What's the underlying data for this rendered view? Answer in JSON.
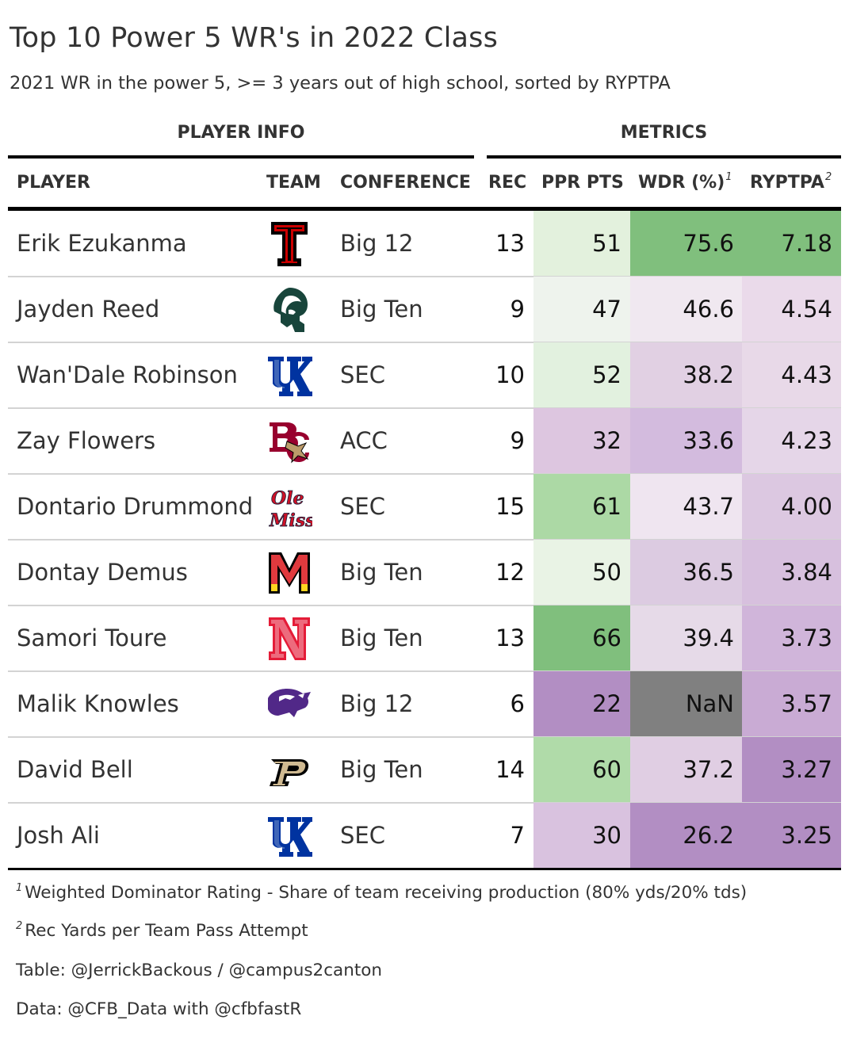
{
  "header": {
    "title": "Top 10 Power 5 WR's in 2022 Class",
    "subtitle": "2021 WR in the power 5, >= 3 years out of high school, sorted by RYPTPA"
  },
  "spanners": {
    "player_info": "PLAYER INFO",
    "metrics": "METRICS"
  },
  "columns": {
    "player": "PLAYER",
    "team": "TEAM",
    "conference": "CONFERENCE",
    "rec": "REC",
    "ppr": "PPR PTS",
    "wdr": "WDR (%)",
    "wdr_note": "1",
    "ryptpa": "RYPTPA",
    "ryptpa_note": "2"
  },
  "chart_data": {
    "type": "table",
    "title": "Top 10 Power 5 WR's in 2022 Class",
    "subtitle": "2021 WR in the power 5, >= 3 years out of high school, sorted by RYPTPA",
    "sort": "RYPTPA",
    "rows": [
      {
        "player": "Erik Ezukanma",
        "team": "texas-tech-logo",
        "conference": "Big 12",
        "rec": "13",
        "ppr": "51",
        "wdr": "75.6",
        "ryptpa": "7.18",
        "ppr_color": "#e3f1dd",
        "wdr_color": "#80bf7d",
        "ryptpa_color": "#80bf7d"
      },
      {
        "player": "Jayden Reed",
        "team": "michigan-state-logo",
        "conference": "Big Ten",
        "rec": "9",
        "ppr": "47",
        "wdr": "46.6",
        "ryptpa": "4.54",
        "ppr_color": "#eef3ed",
        "wdr_color": "#f0e8f0",
        "ryptpa_color": "#eadaea"
      },
      {
        "player": "Wan'Dale Robinson",
        "team": "kentucky-logo",
        "conference": "SEC",
        "rec": "10",
        "ppr": "52",
        "wdr": "38.2",
        "ryptpa": "4.43",
        "ppr_color": "#e2f1df",
        "wdr_color": "#e1d0e3",
        "ryptpa_color": "#e8d9e8"
      },
      {
        "player": "Zay Flowers",
        "team": "boston-college-logo",
        "conference": "ACC",
        "rec": "9",
        "ppr": "32",
        "wdr": "33.6",
        "ryptpa": "4.23",
        "ppr_color": "#ddc6e0",
        "wdr_color": "#d3bbde",
        "ryptpa_color": "#e5d6e8"
      },
      {
        "player": "Dontario Drummond",
        "team": "ole-miss-logo",
        "conference": "SEC",
        "rec": "15",
        "ppr": "61",
        "wdr": "43.7",
        "ryptpa": "4.00",
        "ppr_color": "#acd9a5",
        "wdr_color": "#efe5f0",
        "ryptpa_color": "#dcc8e1"
      },
      {
        "player": "Dontay Demus",
        "team": "maryland-logo",
        "conference": "Big Ten",
        "rec": "12",
        "ppr": "50",
        "wdr": "36.5",
        "ryptpa": "3.84",
        "ppr_color": "#e9f3e5",
        "wdr_color": "#dccbe1",
        "ryptpa_color": "#d7c0de"
      },
      {
        "player": "Samori Toure",
        "team": "nebraska-logo",
        "conference": "Big Ten",
        "rec": "13",
        "ppr": "66",
        "wdr": "39.4",
        "ryptpa": "3.73",
        "ppr_color": "#80bf7d",
        "wdr_color": "#e6dae8",
        "ryptpa_color": "#d0b5da"
      },
      {
        "player": "Malik Knowles",
        "team": "kansas-state-logo",
        "conference": "Big 12",
        "rec": "6",
        "ppr": "22",
        "wdr": "NaN",
        "ryptpa": "3.57",
        "ppr_color": "#b28ec3",
        "wdr_color": "#808080",
        "ryptpa_color": "#c9abd4"
      },
      {
        "player": "David Bell",
        "team": "purdue-logo",
        "conference": "Big Ten",
        "rec": "14",
        "ppr": "60",
        "wdr": "37.2",
        "ryptpa": "3.27",
        "ppr_color": "#b0dba9",
        "wdr_color": "#e0cee3",
        "ryptpa_color": "#b28ec3"
      },
      {
        "player": "Josh Ali",
        "team": "kentucky-logo",
        "conference": "SEC",
        "rec": "7",
        "ppr": "30",
        "wdr": "26.2",
        "ryptpa": "3.25",
        "ppr_color": "#d9c2df",
        "wdr_color": "#b28ec3",
        "ryptpa_color": "#b28ec3"
      }
    ]
  },
  "footnotes": {
    "note1_mark": "1",
    "note1": "Weighted Dominator Rating - Share of team receiving production (80% yds/20% tds)",
    "note2_mark": "2",
    "note2": "Rec Yards per Team Pass Attempt",
    "source_table": "Table: @JerrickBackous / @campus2canton",
    "source_data": "Data: @CFB_Data with @cfbfastR"
  }
}
